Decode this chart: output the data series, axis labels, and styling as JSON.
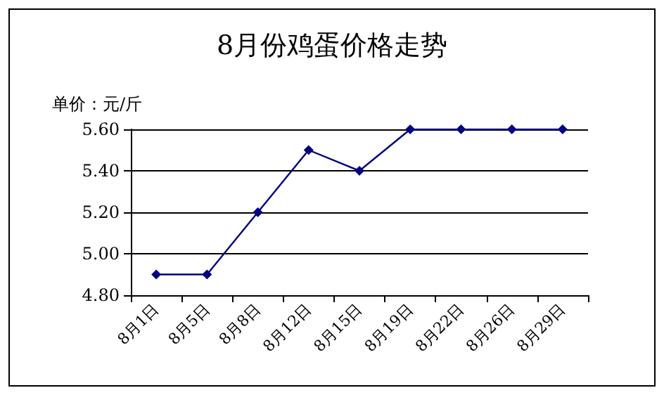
{
  "chart_data": {
    "type": "line",
    "title": "8月份鸡蛋价格走势",
    "ylabel": "单价：元/斤",
    "categories": [
      "8月1日",
      "8月5日",
      "8月8日",
      "8月12日",
      "8月15日",
      "8月19日",
      "8月22日",
      "8月26日",
      "8月29日"
    ],
    "series": [
      {
        "color": "#000080",
        "values": [
          4.9,
          4.9,
          5.2,
          5.5,
          5.4,
          5.6,
          5.6,
          5.6,
          5.6
        ]
      }
    ],
    "ylim": [
      4.8,
      5.6
    ],
    "yticks": [
      {
        "value": 4.8,
        "label": "4.80"
      },
      {
        "value": 5.0,
        "label": "5.00"
      },
      {
        "value": 5.2,
        "label": "5.20"
      },
      {
        "value": 5.4,
        "label": "5.40"
      },
      {
        "value": 5.6,
        "label": "5.60"
      }
    ],
    "grid": "y",
    "marker": "diamond",
    "line_style": "solid"
  }
}
